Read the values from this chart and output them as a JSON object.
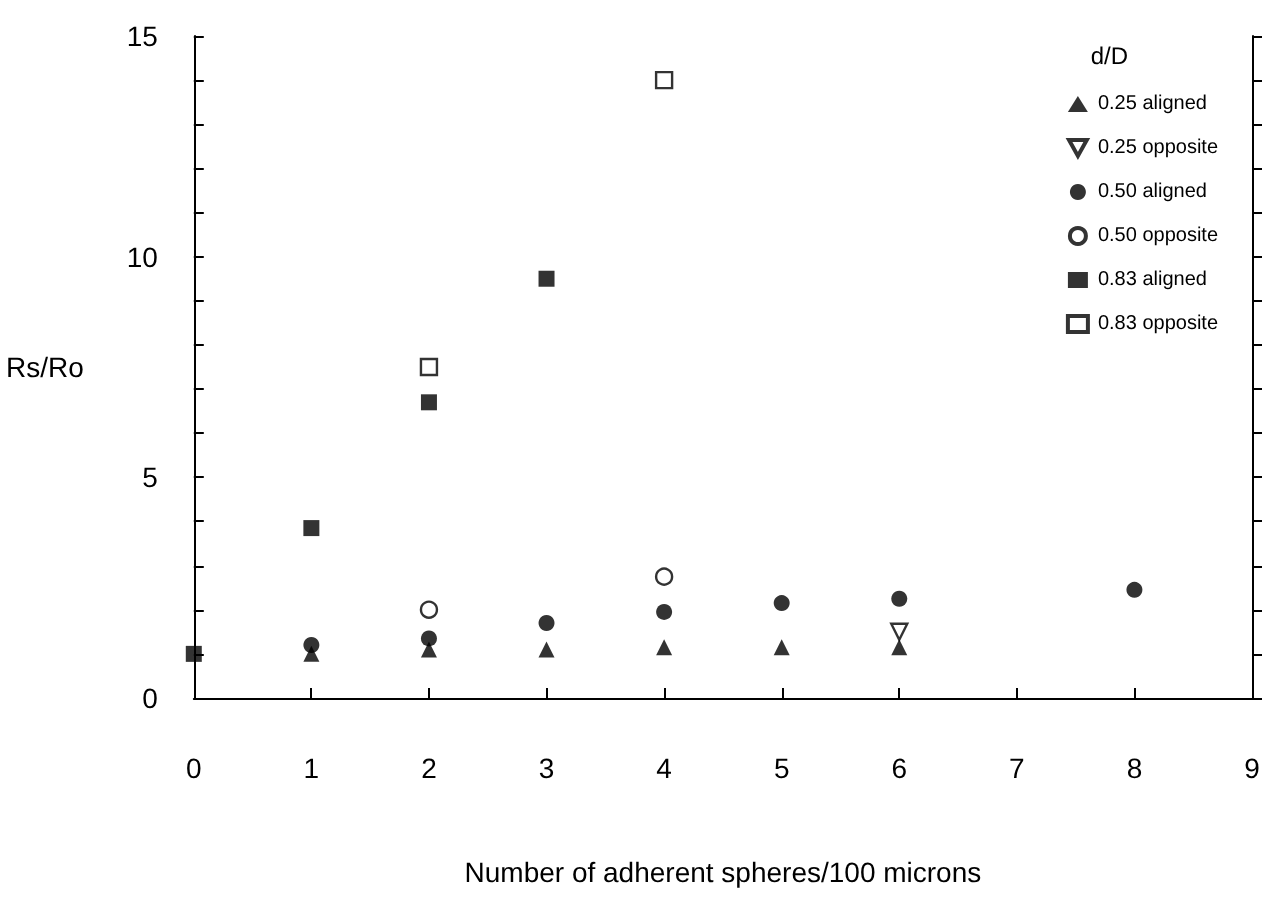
{
  "chart_data": {
    "type": "scatter",
    "xlabel": "Number of adherent spheres/100 microns",
    "ylabel": "Rs/Ro",
    "legend_title": "d/D",
    "legend": "top right",
    "grid": false,
    "xlim": [
      0,
      9
    ],
    "xticks": [
      0,
      1,
      2,
      3,
      4,
      5,
      6,
      7,
      8,
      9
    ],
    "ylim": [
      0,
      15
    ],
    "yticks": [
      0,
      {
        "value": 1,
        "label": null
      },
      {
        "value": 2,
        "label": null
      },
      {
        "value": 3,
        "label": null
      },
      {
        "value": 4,
        "label": null
      },
      5,
      {
        "value": 6,
        "label": null
      },
      {
        "value": 7,
        "label": null
      },
      {
        "value": 8,
        "label": null
      },
      {
        "value": 9,
        "label": null
      },
      10,
      {
        "value": 11,
        "label": null
      },
      {
        "value": 12,
        "label": null
      },
      {
        "value": 13,
        "label": null
      },
      {
        "value": 14,
        "label": null
      },
      15
    ],
    "series": [
      {
        "name": "0.25 aligned",
        "color": "#000000",
        "marker": "triangle",
        "x": [
          1,
          2,
          3,
          4,
          5,
          6
        ],
        "values": [
          1.0,
          1.1,
          1.1,
          1.15,
          1.15,
          1.15
        ]
      },
      {
        "name": "0.25 opposite",
        "color": "#000000",
        "marker": "triangle-down-open",
        "x": [
          6
        ],
        "values": [
          1.5
        ]
      },
      {
        "name": "0.50 aligned",
        "color": "#000000",
        "marker": "circle",
        "x": [
          1,
          2,
          3,
          4,
          5,
          6,
          8
        ],
        "values": [
          1.2,
          1.35,
          1.7,
          1.95,
          2.15,
          2.25,
          2.45
        ]
      },
      {
        "name": "0.50 opposite",
        "color": "#000000",
        "marker": "circle-open",
        "x": [
          2,
          4
        ],
        "values": [
          2.0,
          2.75
        ]
      },
      {
        "name": "0.83 aligned",
        "color": "#000000",
        "marker": "square",
        "x": [
          0,
          1,
          2,
          3
        ],
        "values": [
          1.0,
          3.85,
          6.7,
          9.5
        ]
      },
      {
        "name": "0.83 opposite",
        "color": "#000000",
        "marker": "square-open",
        "x": [
          2,
          4
        ],
        "values": [
          7.5,
          14.0
        ]
      }
    ]
  }
}
